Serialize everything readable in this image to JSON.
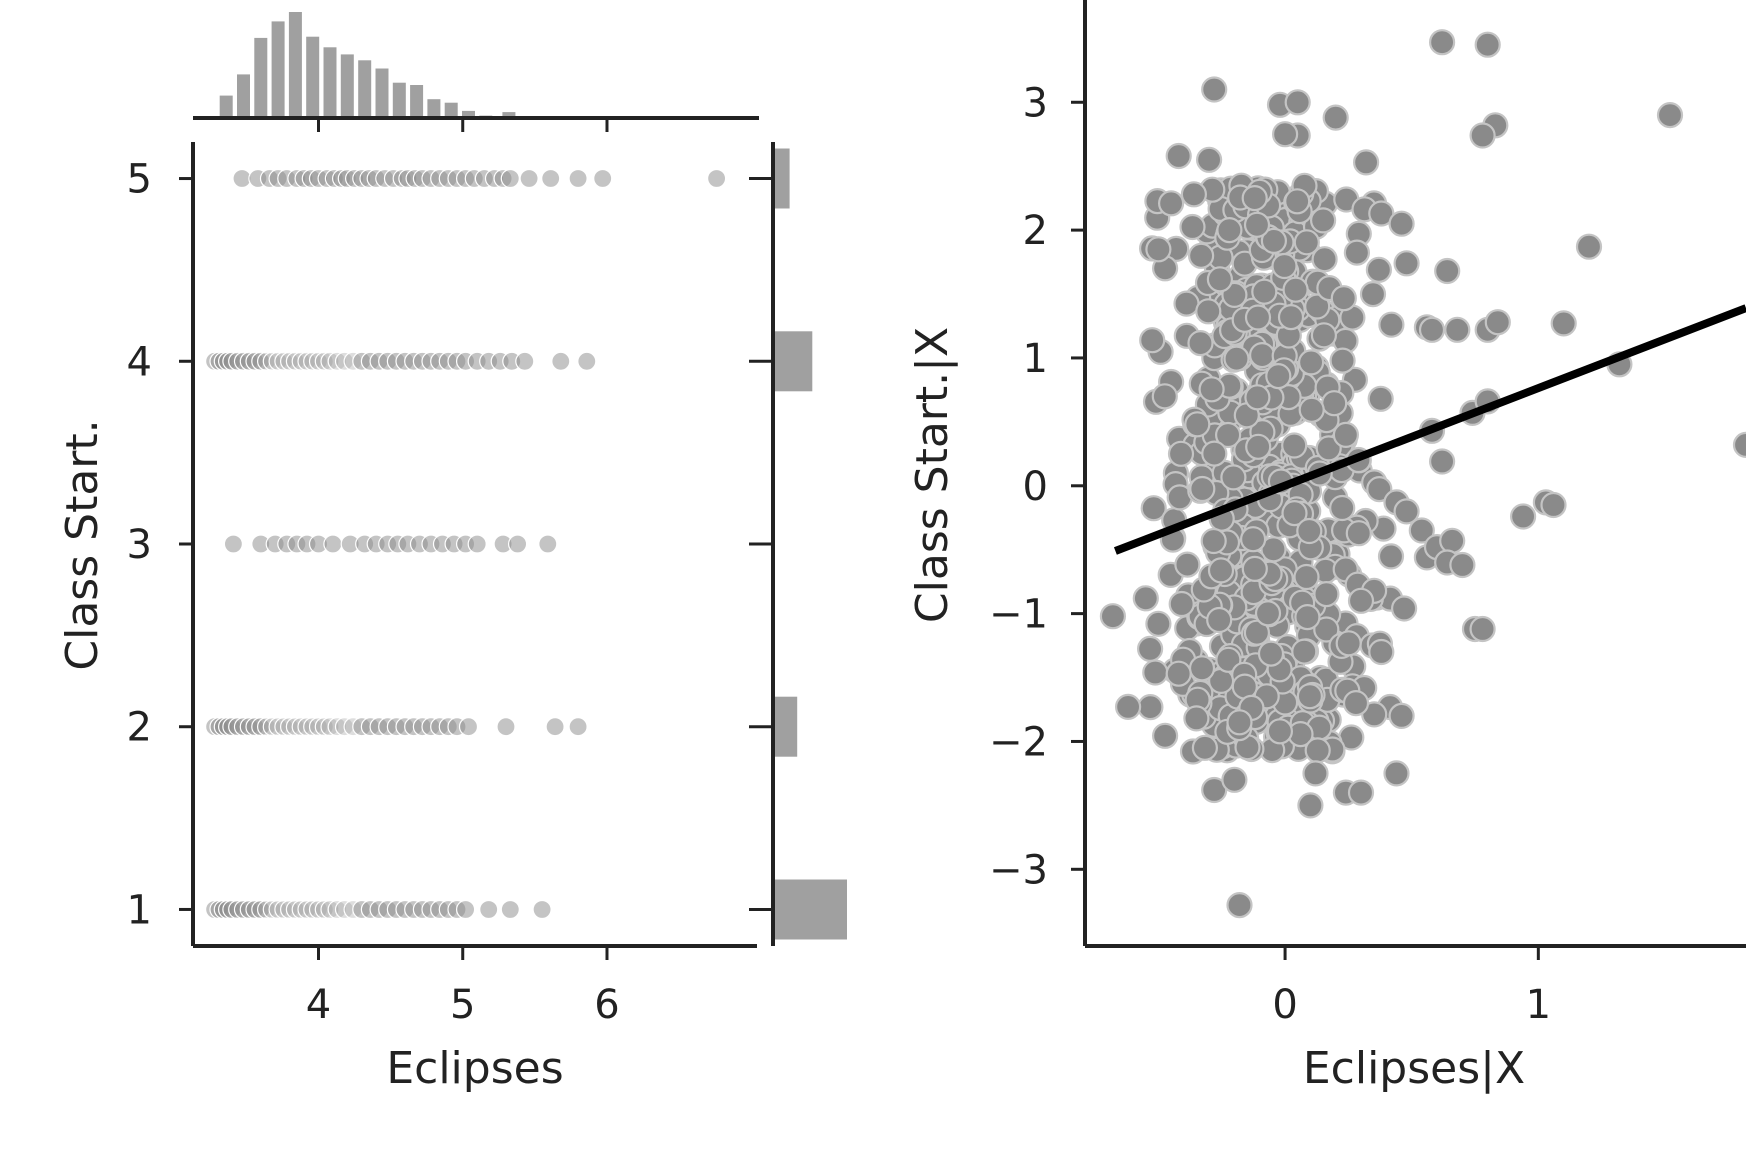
{
  "colors": {
    "marker": "#8a8a8a",
    "marker_edge": "#ffffff",
    "hist_bar": "#a0a0a0",
    "axis": "#222222",
    "fit_line": "#000000"
  },
  "chart_data": [
    {
      "id": "joint",
      "type": "scatter",
      "xlabel": "Eclipses",
      "ylabel": "Class Start.",
      "xlim": [
        3.13,
        7.04
      ],
      "ylim": [
        0.8,
        5.2
      ],
      "xticks": [
        4,
        5,
        6
      ],
      "yticks": [
        1,
        2,
        3,
        4,
        5
      ],
      "rows": [
        {
          "y": 5,
          "x": [
            3.47,
            3.58,
            3.66,
            3.72,
            3.78,
            3.85,
            3.9,
            3.95,
            4.0,
            4.06,
            4.11,
            4.16,
            4.2,
            4.25,
            4.3,
            4.35,
            4.4,
            4.46,
            4.52,
            4.58,
            4.62,
            4.67,
            4.72,
            4.78,
            4.84,
            4.9,
            4.96,
            5.02,
            5.08,
            5.15,
            5.22,
            5.28,
            5.33,
            5.46,
            5.61,
            5.8,
            5.97,
            6.76
          ]
        },
        {
          "y": 4,
          "x": [
            3.28,
            3.31,
            3.34,
            3.37,
            3.4,
            3.44,
            3.48,
            3.52,
            3.56,
            3.6,
            3.64,
            3.68,
            3.72,
            3.76,
            3.8,
            3.84,
            3.88,
            3.92,
            3.96,
            4.0,
            4.04,
            4.08,
            4.13,
            4.18,
            4.24,
            4.3,
            4.36,
            4.42,
            4.48,
            4.54,
            4.6,
            4.66,
            4.72,
            4.78,
            4.84,
            4.9,
            4.96,
            5.02,
            5.1,
            5.18,
            5.26,
            5.34,
            5.43,
            5.68,
            5.86
          ]
        },
        {
          "y": 3,
          "x": [
            3.41,
            3.6,
            3.7,
            3.78,
            3.85,
            3.92,
            4.0,
            4.1,
            4.22,
            4.32,
            4.4,
            4.48,
            4.55,
            4.62,
            4.7,
            4.78,
            4.86,
            4.94,
            5.02,
            5.1,
            5.28,
            5.38,
            5.59
          ]
        },
        {
          "y": 2,
          "x": [
            3.28,
            3.31,
            3.34,
            3.37,
            3.4,
            3.44,
            3.48,
            3.52,
            3.56,
            3.6,
            3.64,
            3.68,
            3.72,
            3.76,
            3.8,
            3.84,
            3.88,
            3.92,
            3.96,
            4.0,
            4.04,
            4.08,
            4.13,
            4.18,
            4.24,
            4.3,
            4.36,
            4.42,
            4.48,
            4.54,
            4.6,
            4.66,
            4.72,
            4.78,
            4.84,
            4.9,
            4.96,
            5.04,
            5.3,
            5.64,
            5.8
          ]
        },
        {
          "y": 1,
          "x": [
            3.28,
            3.31,
            3.34,
            3.37,
            3.4,
            3.44,
            3.48,
            3.52,
            3.56,
            3.6,
            3.64,
            3.68,
            3.72,
            3.76,
            3.8,
            3.84,
            3.88,
            3.92,
            3.96,
            4.0,
            4.04,
            4.08,
            4.13,
            4.18,
            4.24,
            4.3,
            4.36,
            4.42,
            4.48,
            4.54,
            4.6,
            4.66,
            4.72,
            4.78,
            4.84,
            4.9,
            4.96,
            5.02,
            5.18,
            5.33,
            5.55
          ]
        }
      ],
      "top_hist": {
        "bin_centers": [
          3.36,
          3.48,
          3.6,
          3.72,
          3.84,
          3.96,
          4.08,
          4.2,
          4.32,
          4.44,
          4.56,
          4.68,
          4.8,
          4.92,
          5.04,
          5.16,
          5.32
        ],
        "counts": [
          19,
          37,
          68,
          82,
          90,
          69,
          60,
          54,
          49,
          42,
          30,
          28,
          16,
          13,
          6,
          2,
          5
        ]
      },
      "right_hist": {
        "categories": [
          5,
          4,
          3,
          2,
          1
        ],
        "counts": [
          11,
          26,
          1,
          16,
          49
        ]
      }
    },
    {
      "id": "partial",
      "type": "scatter",
      "xlabel": "Eclipses|X",
      "ylabel": "Class Start.|X",
      "xlim": [
        -0.79,
        1.82
      ],
      "ylim": [
        -3.6,
        3.8
      ],
      "xticks": [
        0,
        1
      ],
      "yticks": [
        3,
        2,
        1,
        0,
        -1,
        -2,
        -3
      ],
      "ytick_labels": [
        "3",
        "2",
        "1",
        "0",
        "−1",
        "−2",
        "−3"
      ],
      "fit_line": {
        "x": [
          -0.67,
          1.82
        ],
        "y": [
          -0.51,
          1.39
        ]
      },
      "outliers": {
        "x": [
          -0.28,
          -0.02,
          0.05,
          0.62,
          0.8,
          1.52,
          0.83,
          0.78,
          0.2,
          0.32,
          0.38,
          -0.42,
          -0.3,
          -0.36,
          -0.1,
          0.05,
          0.0,
          -0.45,
          -0.5,
          -0.22,
          -0.12,
          0.46,
          0.48,
          0.64,
          0.56,
          0.42,
          0.58,
          0.68,
          1.2,
          0.8,
          0.84,
          1.1,
          1.32,
          0.74,
          0.8,
          0.58,
          0.62,
          0.44,
          0.48,
          0.54,
          0.56,
          0.6,
          0.66,
          0.64,
          0.7,
          0.75,
          0.94,
          1.03,
          1.06,
          1.82,
          0.47,
          0.78,
          0.12,
          0.24,
          0.28,
          0.46,
          -0.28,
          -0.62,
          -0.68,
          -0.55,
          -0.42,
          -0.18,
          0.1,
          0.3,
          -0.2,
          -0.35,
          -0.5,
          -0.26,
          0.44,
          0.38,
          0.3
        ],
        "y": [
          3.1,
          2.98,
          3.0,
          3.47,
          3.45,
          2.9,
          2.82,
          2.74,
          2.88,
          2.53,
          2.13,
          2.58,
          2.55,
          2.28,
          2.3,
          2.74,
          2.75,
          2.21,
          1.85,
          2.0,
          2.25,
          2.05,
          1.74,
          1.68,
          1.24,
          1.26,
          1.22,
          1.22,
          1.87,
          1.22,
          1.28,
          1.27,
          0.95,
          0.57,
          0.66,
          0.43,
          0.19,
          -0.13,
          -0.2,
          -0.35,
          -0.56,
          -0.48,
          -0.43,
          -0.6,
          -0.62,
          -1.12,
          -0.24,
          -0.13,
          -0.15,
          0.32,
          -0.96,
          -1.12,
          -2.25,
          -2.4,
          -1.7,
          -1.8,
          -2.38,
          -1.73,
          -1.02,
          -0.88,
          -1.47,
          -1.85,
          -2.5,
          -2.4,
          -2.3,
          -1.82,
          -1.08,
          -1.05,
          -2.25,
          -1.3,
          -0.9
        ]
      },
      "core": {
        "count": 620,
        "seed": 7,
        "x_center": -0.05,
        "x_spread": 0.22,
        "y_min": -2.1,
        "y_max": 2.35
      }
    }
  ]
}
